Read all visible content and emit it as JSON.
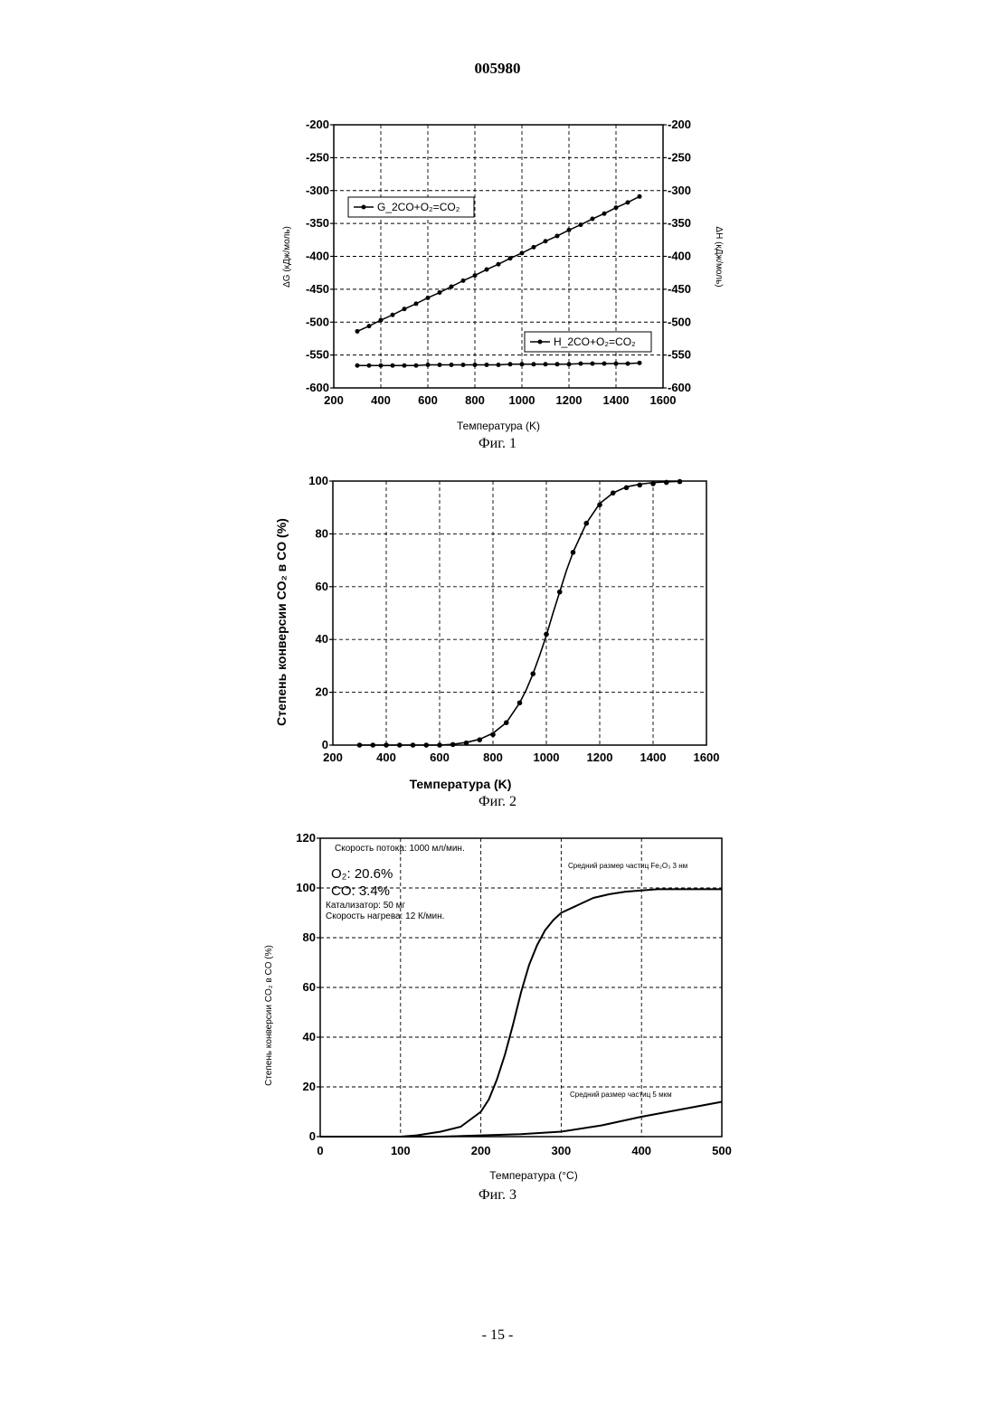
{
  "document": {
    "number": "005980",
    "page_number": "- 15 -"
  },
  "figures": {
    "fig1": {
      "caption": "Фиг. 1",
      "ylabel_left": "ΔG (кДж/моль)",
      "ylabel_right": "ΔH (кДж/моль)",
      "xlabel": "Температура (K)",
      "legend_g": "G_2CO+O₂=CO₂",
      "legend_h": "H_2CO+O₂=CO₂"
    },
    "fig2": {
      "caption": "Фиг. 2",
      "ylabel": "Степень конверсии CO₂ в CO (%)",
      "xlabel": "Температура (K)"
    },
    "fig3": {
      "caption": "Фиг. 3",
      "ylabel": "Степень конверсии CO₂ в CO (%)",
      "xlabel": "Температура (°C)",
      "annotations": {
        "flow": "Скорость потока: 1000 мл/мин.",
        "o2": "O₂: 20.6%",
        "co": "CO: 3.4%",
        "catalyst": "Катализатор: 50 мг",
        "heating": "Скорость нагрева: 12 К/мин.",
        "particle_fe": "Средний размер частиц Fe₂O₃ 3 нм",
        "particle_5": "Средний размер частиц 5 мкм"
      }
    }
  },
  "chart_data": [
    {
      "type": "scatter",
      "title": "",
      "xlabel": "Температура (K)",
      "ylabel": "ΔG (кДж/моль)",
      "ylabel_right": "ΔH (кДж/моль)",
      "xlim": [
        200,
        1600
      ],
      "ylim": [
        -600,
        -200
      ],
      "xticks": [
        200,
        400,
        600,
        800,
        1000,
        1200,
        1400,
        1600
      ],
      "yticks": [
        -200,
        -250,
        -300,
        -350,
        -400,
        -450,
        -500,
        -550,
        -600
      ],
      "grid": true,
      "legend": "top-left and bottom-right",
      "series": [
        {
          "name": "G_2CO+O₂=CO₂",
          "x": [
            300,
            350,
            400,
            450,
            500,
            550,
            600,
            650,
            700,
            750,
            800,
            850,
            900,
            950,
            1000,
            1050,
            1100,
            1150,
            1200,
            1250,
            1300,
            1350,
            1400,
            1450,
            1500
          ],
          "y": [
            -514,
            -506,
            -497,
            -489,
            -480,
            -472,
            -463,
            -455,
            -446,
            -437,
            -429,
            -420,
            -412,
            -403,
            -395,
            -386,
            -377,
            -369,
            -360,
            -352,
            -343,
            -335,
            -326,
            -318,
            -309
          ]
        },
        {
          "name": "H_2CO+O₂=CO₂",
          "x": [
            300,
            350,
            400,
            450,
            500,
            550,
            600,
            650,
            700,
            750,
            800,
            850,
            900,
            950,
            1000,
            1050,
            1100,
            1150,
            1200,
            1250,
            1300,
            1350,
            1400,
            1450,
            1500
          ],
          "y": [
            -566,
            -566,
            -566,
            -566,
            -566,
            -566,
            -565,
            -565,
            -565,
            -565,
            -565,
            -565,
            -565,
            -564,
            -564,
            -564,
            -564,
            -564,
            -564,
            -563,
            -563,
            -563,
            -563,
            -563,
            -562
          ]
        }
      ]
    },
    {
      "type": "scatter",
      "title": "",
      "xlabel": "Температура (K)",
      "ylabel": "Степень конверсии CO₂ в CO (%)",
      "xlim": [
        200,
        1600
      ],
      "ylim": [
        0,
        100
      ],
      "xticks": [
        200,
        400,
        600,
        800,
        1000,
        1200,
        1400,
        1600
      ],
      "yticks": [
        0,
        20,
        40,
        60,
        80,
        100
      ],
      "grid": true,
      "points": {
        "x": [
          300,
          350,
          400,
          450,
          500,
          550,
          600,
          650,
          700,
          750,
          800,
          850,
          900,
          950,
          1000,
          1050,
          1100,
          1150,
          1200,
          1250,
          1300,
          1350,
          1400,
          1450,
          1500
        ],
        "y": [
          0,
          0,
          0,
          0,
          0,
          0,
          0,
          0.2,
          0.8,
          2,
          4,
          8.5,
          16,
          27,
          42,
          58,
          73,
          84,
          91,
          95.5,
          97.5,
          98.5,
          99,
          99.5,
          99.8
        ]
      },
      "fit_curve": {
        "x": [
          300,
          400,
          500,
          600,
          650,
          700,
          750,
          800,
          850,
          900,
          925,
          950,
          975,
          1000,
          1025,
          1050,
          1075,
          1100,
          1150,
          1200,
          1250,
          1300,
          1350,
          1400,
          1450,
          1500
        ],
        "y": [
          0,
          0,
          0,
          0,
          0.3,
          1,
          2.2,
          4.5,
          8.5,
          16,
          21,
          27,
          34,
          41.5,
          50,
          58,
          66,
          73,
          84,
          91.5,
          95.5,
          97.8,
          98.8,
          99.4,
          99.7,
          99.9
        ]
      }
    },
    {
      "type": "line",
      "title": "",
      "xlabel": "Температура (°C)",
      "ylabel": "Степень конверсии CO₂ в CO (%)",
      "xlim": [
        0,
        500
      ],
      "ylim": [
        0,
        120
      ],
      "xticks": [
        0,
        100,
        200,
        300,
        400,
        500
      ],
      "yticks": [
        0,
        20,
        40,
        60,
        80,
        100,
        120
      ],
      "grid": true,
      "series": [
        {
          "name": "Средний размер частиц Fe₂O₃ 3 нм",
          "x": [
            0,
            50,
            100,
            120,
            150,
            175,
            200,
            210,
            220,
            230,
            240,
            250,
            260,
            270,
            280,
            290,
            300,
            320,
            340,
            360,
            380,
            400,
            420,
            450,
            480,
            500
          ],
          "y": [
            0,
            0,
            0,
            0.5,
            2,
            4,
            10,
            15,
            23,
            33,
            45,
            58,
            69,
            77,
            83,
            87,
            90,
            93,
            96,
            97.5,
            98.5,
            99,
            99.5,
            99.5,
            99.5,
            99.5
          ]
        },
        {
          "name": "Средний размер частиц 5 мкм",
          "x": [
            0,
            150,
            200,
            250,
            300,
            350,
            400,
            450,
            500
          ],
          "y": [
            0,
            0,
            0.5,
            1,
            2,
            4.5,
            8,
            11,
            14
          ]
        }
      ]
    }
  ]
}
